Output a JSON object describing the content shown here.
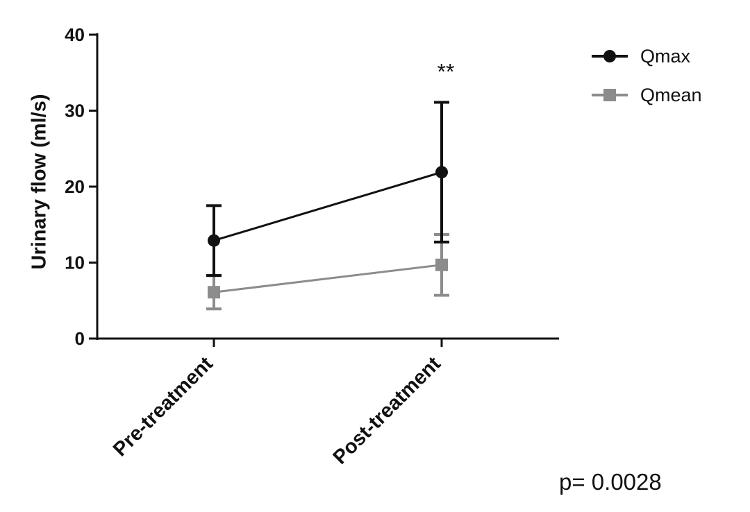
{
  "chart_data": {
    "type": "line",
    "ylabel": "Urinary flow (ml/s)",
    "ylim": [
      0,
      40
    ],
    "yticks": [
      "0",
      "10",
      "20",
      "30",
      "40"
    ],
    "categories": [
      "Pre-treatment",
      "Post-treatment"
    ],
    "series": [
      {
        "name": "Qmax",
        "color": "#111111",
        "marker": "circle",
        "values": [
          12.9,
          21.9
        ],
        "error": [
          4.6,
          9.2
        ]
      },
      {
        "name": "Qmean",
        "color": "#8c8c8c",
        "marker": "square",
        "values": [
          6.1,
          9.7
        ],
        "error": [
          2.2,
          4.0
        ]
      }
    ],
    "annotation": "**",
    "pvalue": "p= 0.0028"
  }
}
